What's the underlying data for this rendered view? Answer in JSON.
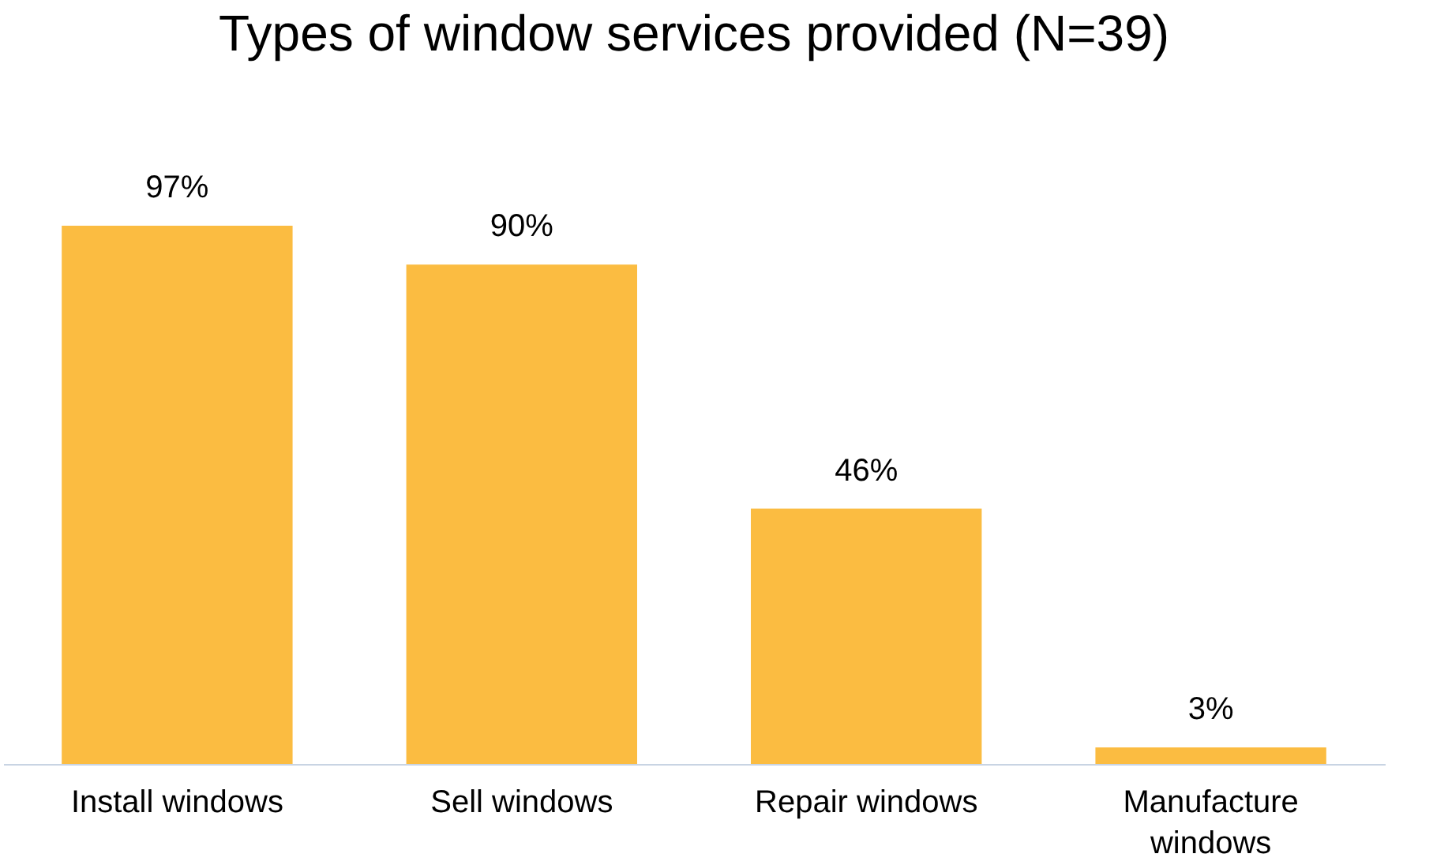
{
  "chart_data": {
    "type": "bar",
    "title": "Types of window services provided (N=39)",
    "categories": [
      "Install windows",
      "Sell windows",
      "Repair windows",
      "Manufacture windows"
    ],
    "values": [
      97,
      90,
      46,
      3
    ],
    "value_labels": [
      "97%",
      "90%",
      "46%",
      "3%"
    ],
    "color": "#fbbc41"
  }
}
